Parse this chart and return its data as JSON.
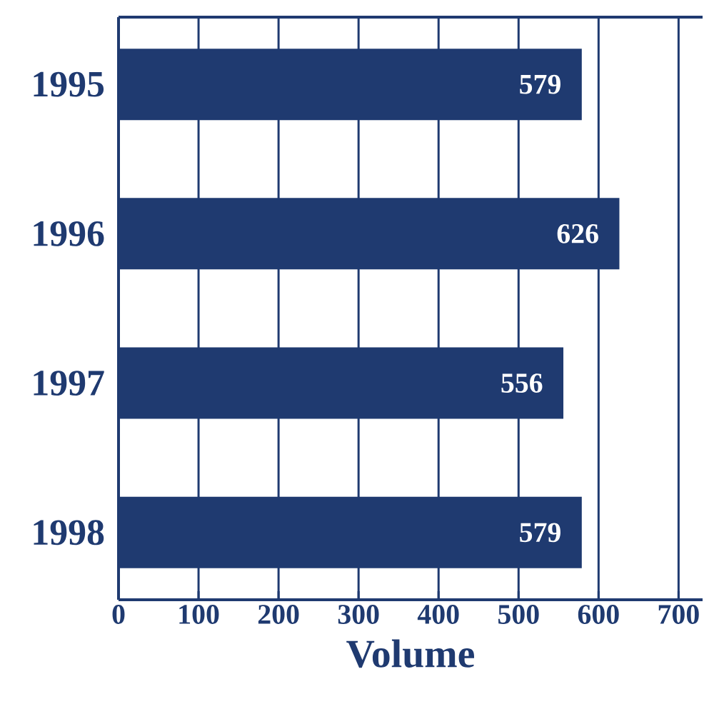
{
  "chart_data": {
    "type": "bar",
    "orientation": "horizontal",
    "xlabel": "Volume",
    "categories": [
      "1995",
      "1996",
      "1997",
      "1998"
    ],
    "values": [
      579,
      626,
      556,
      579
    ],
    "color": "#1f3a70",
    "data_labels": true,
    "xlim": [
      0,
      730
    ],
    "xticks": [
      0,
      100,
      200,
      300,
      400,
      500,
      600,
      700
    ],
    "grid": "x"
  }
}
